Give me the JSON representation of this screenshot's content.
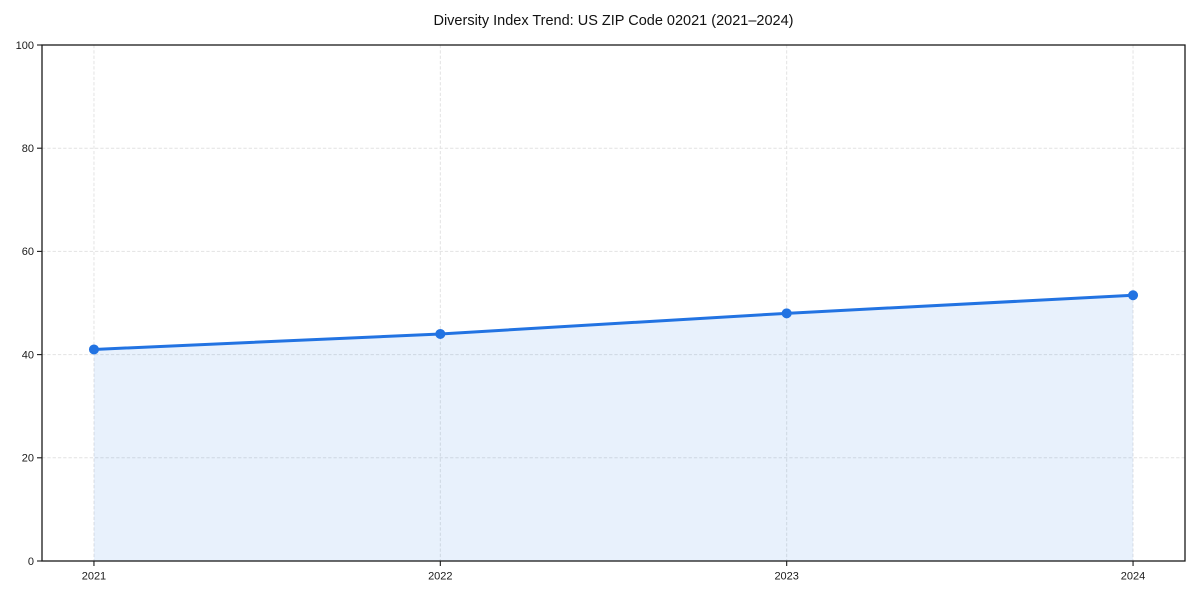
{
  "chart_data": {
    "type": "line",
    "title": "Diversity Index Trend: US ZIP Code 02021 (2021–2024)",
    "x": [
      2021,
      2022,
      2023,
      2024
    ],
    "x_tick_labels": [
      "2021",
      "2022",
      "2023",
      "2024"
    ],
    "values": [
      41,
      44,
      48,
      51.5
    ],
    "xlabel": "",
    "ylabel": "",
    "xlim": [
      2020.85,
      2024.15
    ],
    "ylim": [
      0,
      100
    ],
    "yticks": [
      0,
      20,
      40,
      60,
      80,
      100
    ],
    "ytick_labels": [
      "0",
      "20",
      "40",
      "60",
      "80",
      "100"
    ],
    "grid": true,
    "grid_style": "dashed",
    "legend": false,
    "marker": "circle",
    "area_fill": true,
    "colors": {
      "line": "#2273e2",
      "marker": "#2273e2",
      "fill": "#2273e2",
      "fill_opacity": 0.1,
      "grid": "#e2e2e2",
      "axis": "#1a1a1a",
      "tick_label": "#1a1a1a",
      "background": "#ffffff"
    }
  }
}
